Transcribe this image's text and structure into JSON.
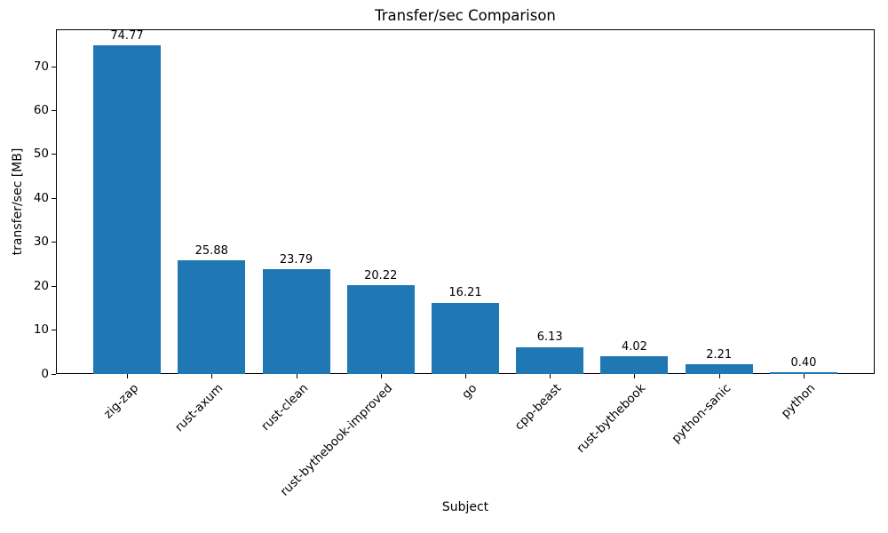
{
  "chart_data": {
    "type": "bar",
    "title": "Transfer/sec Comparison",
    "xlabel": "Subject",
    "ylabel": "transfer/sec [MB]",
    "categories": [
      "zig-zap",
      "rust-axum",
      "rust-clean",
      "rust-bythebook-improved",
      "go",
      "cpp-beast",
      "rust-bythebook",
      "python-sanic",
      "python"
    ],
    "values": [
      74.77,
      25.88,
      23.79,
      20.22,
      16.21,
      6.13,
      4.02,
      2.21,
      0.4
    ],
    "value_labels": [
      "74.77",
      "25.88",
      "23.79",
      "20.22",
      "16.21",
      "6.13",
      "4.02",
      "2.21",
      "0.40"
    ],
    "y_ticks": [
      0,
      10,
      20,
      30,
      40,
      50,
      60,
      70
    ],
    "ylim": [
      0,
      78.5
    ],
    "x_tick_rotation": 45,
    "grid": false,
    "legend": null,
    "bar_color": "#1f77b4",
    "text_color": "#000000"
  }
}
